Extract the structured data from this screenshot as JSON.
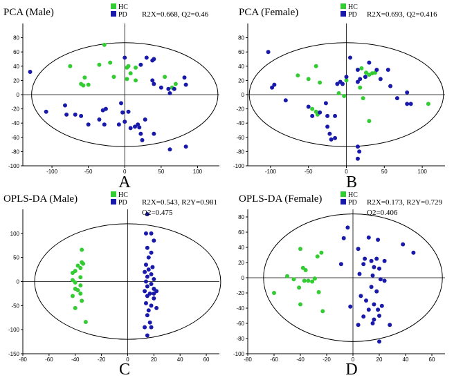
{
  "colors": {
    "hc": "#33cc33",
    "pd": "#1a1aaa"
  },
  "legend": {
    "hc": "HC",
    "pd": "PD"
  },
  "chart_data": [
    {
      "type": "scatter",
      "letter": "A",
      "title": "PCA (Male)",
      "stats": [
        "R2X=0.668, Q2=0.46"
      ],
      "xlim": [
        -140,
        130
      ],
      "ylim": [
        -100,
        100
      ],
      "xticks": [
        -100,
        -50,
        0,
        50,
        100
      ],
      "yticks": [
        -100,
        -80,
        -60,
        -40,
        -20,
        0,
        20,
        40,
        60,
        80
      ],
      "ellipse": {
        "cx": 0,
        "cy": 0,
        "rx": 128,
        "ry": 73
      },
      "series": [
        {
          "name": "HC",
          "points": [
            [
              -28,
              70
            ],
            [
              -75,
              40
            ],
            [
              -35,
              42
            ],
            [
              -20,
              45
            ],
            [
              -55,
              24
            ],
            [
              -60,
              15
            ],
            [
              -57,
              13
            ],
            [
              -50,
              14
            ],
            [
              -15,
              25
            ],
            [
              5,
              40
            ],
            [
              8,
              30
            ],
            [
              15,
              38
            ],
            [
              3,
              38
            ],
            [
              3,
              22
            ],
            [
              55,
              25
            ],
            [
              70,
              15
            ],
            [
              65,
              10
            ],
            [
              15,
              20
            ]
          ]
        },
        {
          "name": "PD",
          "points": [
            [
              -130,
              32
            ],
            [
              0,
              52
            ],
            [
              22,
              42
            ],
            [
              30,
              52
            ],
            [
              38,
              48
            ],
            [
              40,
              50
            ],
            [
              38,
              20
            ],
            [
              40,
              15
            ],
            [
              50,
              10
            ],
            [
              60,
              8
            ],
            [
              62,
              2
            ],
            [
              68,
              8
            ],
            [
              82,
              24
            ],
            [
              84,
              14
            ],
            [
              -108,
              -24
            ],
            [
              -82,
              -15
            ],
            [
              -80,
              -28
            ],
            [
              -68,
              -28
            ],
            [
              -60,
              -30
            ],
            [
              -50,
              -42
            ],
            [
              -30,
              -22
            ],
            [
              -26,
              -20
            ],
            [
              -35,
              -35
            ],
            [
              -28,
              -42
            ],
            [
              -5,
              -12
            ],
            [
              -3,
              -25
            ],
            [
              0,
              -38
            ],
            [
              5,
              -24
            ],
            [
              8,
              -47
            ],
            [
              18,
              -42
            ],
            [
              -8,
              -42
            ],
            [
              14,
              -45
            ],
            [
              22,
              -55
            ],
            [
              28,
              -35
            ],
            [
              20,
              -46
            ],
            [
              24,
              -64
            ],
            [
              40,
              -55
            ],
            [
              62,
              -77
            ],
            [
              84,
              -73
            ]
          ]
        }
      ]
    },
    {
      "type": "scatter",
      "letter": "B",
      "title": "PCA (Female)",
      "stats": [
        "R2X=0.693, Q2=0.416"
      ],
      "xlim": [
        -130,
        130
      ],
      "ylim": [
        -100,
        100
      ],
      "xticks": [
        -100,
        -50,
        0,
        50,
        100
      ],
      "yticks": [
        -100,
        -80,
        -60,
        -40,
        -20,
        0,
        20,
        40,
        60,
        80
      ],
      "ellipse": {
        "cx": 0,
        "cy": 0,
        "rx": 128,
        "ry": 73
      },
      "series": [
        {
          "name": "HC",
          "points": [
            [
              -40,
              40
            ],
            [
              -64,
              27
            ],
            [
              -50,
              22
            ],
            [
              -35,
              17
            ],
            [
              -10,
              2
            ],
            [
              0,
              20
            ],
            [
              -3,
              -2
            ],
            [
              -45,
              -20
            ],
            [
              -40,
              -24
            ],
            [
              -38,
              -28
            ],
            [
              18,
              10
            ],
            [
              22,
              -5
            ],
            [
              20,
              37
            ],
            [
              26,
              31
            ],
            [
              30,
              28
            ],
            [
              34,
              30
            ],
            [
              38,
              31
            ],
            [
              30,
              -37
            ],
            [
              108,
              -13
            ]
          ]
        },
        {
          "name": "PD",
          "points": [
            [
              -103,
              60
            ],
            [
              -95,
              14
            ],
            [
              -98,
              10
            ],
            [
              -80,
              -8
            ],
            [
              -50,
              -17
            ],
            [
              -45,
              -30
            ],
            [
              -35,
              -25
            ],
            [
              -27,
              -12
            ],
            [
              -15,
              -30
            ],
            [
              -25,
              -45
            ],
            [
              -22,
              -55
            ],
            [
              -15,
              -61
            ],
            [
              -20,
              -63
            ],
            [
              -25,
              -30
            ],
            [
              -12,
              15
            ],
            [
              -5,
              15
            ],
            [
              -8,
              18
            ],
            [
              0,
              25
            ],
            [
              5,
              52
            ],
            [
              15,
              35
            ],
            [
              15,
              18
            ],
            [
              18,
              22
            ],
            [
              25,
              25
            ],
            [
              30,
              45
            ],
            [
              40,
              35
            ],
            [
              45,
              22
            ],
            [
              55,
              35
            ],
            [
              58,
              12
            ],
            [
              67,
              -5
            ],
            [
              80,
              3
            ],
            [
              85,
              -13
            ],
            [
              15,
              -73
            ],
            [
              17,
              -80
            ],
            [
              15,
              -90
            ],
            [
              80,
              -13
            ]
          ]
        }
      ]
    },
    {
      "type": "scatter",
      "letter": "C",
      "title": "OPLS-DA (Male)",
      "stats": [
        "R2X=0.543, R2Y=0.981",
        "Q2=0.475"
      ],
      "xlim": [
        -80,
        70
      ],
      "ylim": [
        -150,
        150
      ],
      "xticks": [
        -80,
        -60,
        -40,
        -20,
        0,
        20,
        40,
        60
      ],
      "yticks": [
        -150,
        -100,
        -50,
        0,
        50,
        100
      ],
      "ellipse": {
        "cx": 0,
        "cy": 0,
        "rx": 71,
        "ry": 120
      },
      "series": [
        {
          "name": "HC",
          "points": [
            [
              -35,
              66
            ],
            [
              -38,
              33
            ],
            [
              -35,
              40
            ],
            [
              -34,
              37
            ],
            [
              -36,
              28
            ],
            [
              -40,
              22
            ],
            [
              -42,
              18
            ],
            [
              -36,
              9
            ],
            [
              -42,
              3
            ],
            [
              -40,
              -2
            ],
            [
              -36,
              -8
            ],
            [
              -40,
              -15
            ],
            [
              -38,
              -18
            ],
            [
              -36,
              -25
            ],
            [
              -42,
              -30
            ],
            [
              -35,
              -40
            ],
            [
              -40,
              -55
            ],
            [
              -32,
              -84
            ]
          ]
        },
        {
          "name": "PD",
          "points": [
            [
              15,
              140
            ],
            [
              18,
              100
            ],
            [
              14,
              100
            ],
            [
              20,
              85
            ],
            [
              15,
              70
            ],
            [
              18,
              60
            ],
            [
              16,
              50
            ],
            [
              14,
              35
            ],
            [
              19,
              30
            ],
            [
              16,
              25
            ],
            [
              13,
              20
            ],
            [
              18,
              15
            ],
            [
              15,
              10
            ],
            [
              20,
              5
            ],
            [
              14,
              0
            ],
            [
              18,
              -5
            ],
            [
              15,
              -10
            ],
            [
              20,
              -15
            ],
            [
              13,
              -20
            ],
            [
              17,
              -25
            ],
            [
              15,
              -30
            ],
            [
              20,
              -35
            ],
            [
              14,
              -45
            ],
            [
              18,
              -50
            ],
            [
              22,
              -55
            ],
            [
              16,
              -60
            ],
            [
              15,
              -70
            ],
            [
              17,
              -85
            ],
            [
              13,
              -95
            ],
            [
              18,
              -95
            ],
            [
              15,
              -112
            ],
            [
              20,
              -25
            ],
            [
              22,
              -20
            ]
          ]
        }
      ]
    },
    {
      "type": "scatter",
      "letter": "D",
      "title": "OPLS-DA (Female)",
      "stats": [
        "R2X=0.173, R2Y=0.729",
        "Q2=0.406"
      ],
      "xlim": [
        -80,
        70
      ],
      "ylim": [
        -100,
        90
      ],
      "xticks": [
        -80,
        -60,
        -40,
        -20,
        0,
        20,
        40,
        60
      ],
      "yticks": [
        -100,
        -80,
        -60,
        -40,
        -20,
        0,
        20,
        40,
        60,
        80
      ],
      "ellipse": {
        "cx": 0,
        "cy": 0,
        "rx": 68,
        "ry": 84
      },
      "series": [
        {
          "name": "HC",
          "points": [
            [
              -40,
              38
            ],
            [
              -24,
              33
            ],
            [
              -38,
              13
            ],
            [
              -36,
              10
            ],
            [
              -27,
              28
            ],
            [
              -50,
              2
            ],
            [
              -45,
              -2
            ],
            [
              -37,
              -4
            ],
            [
              -34,
              -4
            ],
            [
              -29,
              -1
            ],
            [
              -31,
              -5
            ],
            [
              -60,
              -20
            ],
            [
              -41,
              -13
            ],
            [
              -40,
              -35
            ],
            [
              -26,
              -19
            ],
            [
              -23,
              -44
            ]
          ]
        },
        {
          "name": "PD",
          "points": [
            [
              -4,
              66
            ],
            [
              -7,
              52
            ],
            [
              12,
              53
            ],
            [
              19,
              50
            ],
            [
              38,
              44
            ],
            [
              46,
              33
            ],
            [
              4,
              38
            ],
            [
              9,
              25
            ],
            [
              14,
              22
            ],
            [
              18,
              25
            ],
            [
              24,
              22
            ],
            [
              8,
              18
            ],
            [
              -9,
              18
            ],
            [
              16,
              14
            ],
            [
              20,
              12
            ],
            [
              5,
              5
            ],
            [
              15,
              3
            ],
            [
              21,
              -2
            ],
            [
              24,
              -4
            ],
            [
              14,
              -12
            ],
            [
              18,
              -18
            ],
            [
              6,
              -24
            ],
            [
              10,
              -30
            ],
            [
              16,
              -35
            ],
            [
              22,
              -37
            ],
            [
              12,
              -42
            ],
            [
              19,
              -42
            ],
            [
              8,
              -51
            ],
            [
              20,
              -50
            ],
            [
              -2,
              -38
            ],
            [
              15,
              -60
            ],
            [
              28,
              -62
            ],
            [
              4,
              -62
            ],
            [
              20,
              -84
            ],
            [
              16,
              -55
            ]
          ]
        }
      ]
    }
  ]
}
